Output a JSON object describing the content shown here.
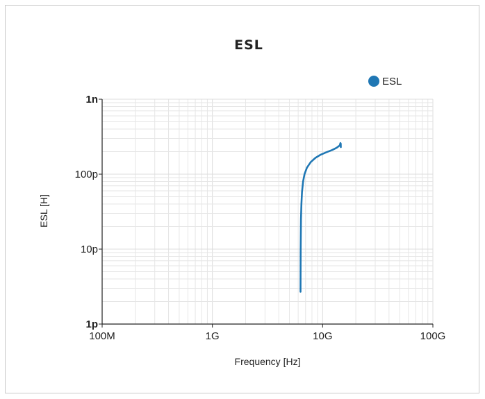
{
  "chart_data": {
    "type": "line",
    "title": "ESL",
    "xlabel": "Frequency [Hz]",
    "ylabel": "ESL [H]",
    "x_scale": "log",
    "y_scale": "log",
    "xlim": [
      100000000,
      100000000000
    ],
    "ylim": [
      1e-12,
      1e-09
    ],
    "x_ticks": [
      {
        "value": 100000000,
        "label": "100M"
      },
      {
        "value": 1000000000,
        "label": "1G"
      },
      {
        "value": 10000000000,
        "label": "10G"
      },
      {
        "value": 100000000000,
        "label": "100G"
      }
    ],
    "y_ticks": [
      {
        "value": 1e-12,
        "label": "1p",
        "bold": true
      },
      {
        "value": 1e-11,
        "label": "10p",
        "bold": false
      },
      {
        "value": 1e-10,
        "label": "100p",
        "bold": false
      },
      {
        "value": 1e-09,
        "label": "1n",
        "bold": true
      }
    ],
    "grid": true,
    "legend_position": "top-right",
    "series": [
      {
        "name": "ESL",
        "color": "#1f77b4",
        "x": [
          6300000000.0,
          6320000000.0,
          6360000000.0,
          6420000000.0,
          6500000000.0,
          6650000000.0,
          6850000000.0,
          7200000000.0,
          7800000000.0,
          8600000000.0,
          9600000000.0,
          10800000000.0,
          12200000000.0,
          13400000000.0,
          14300000000.0,
          14500000000.0,
          14600000000.0,
          14620000000.0
        ],
        "y": [
          2.7e-12,
          1e-11,
          2.5e-11,
          4e-11,
          5.8e-11,
          8e-11,
          1e-10,
          1.22e-10,
          1.45e-10,
          1.65e-10,
          1.82e-10,
          1.96e-10,
          2.1e-10,
          2.25e-10,
          2.42e-10,
          2.6e-10,
          2.55e-10,
          2.3e-10
        ]
      }
    ]
  }
}
